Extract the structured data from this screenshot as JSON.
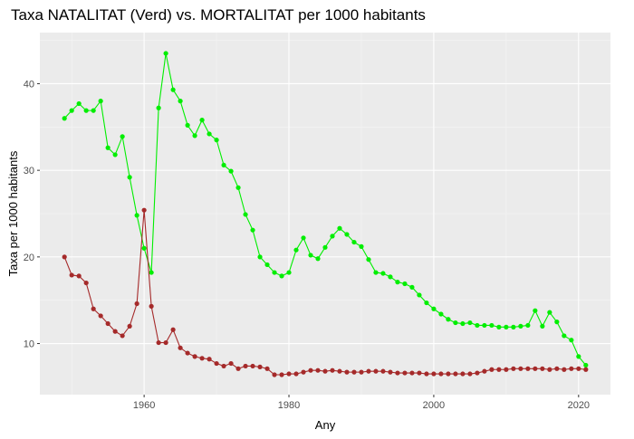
{
  "chart_data": {
    "type": "line",
    "title": "Taxa NATALITAT (Verd) vs. MORTALITAT per 1000 habitants",
    "xlabel": "Any",
    "ylabel": "Taxa per 1000 habitants",
    "xlim": [
      1946.4,
      1923.6
    ],
    "ylim": [
      4.1,
      45.9
    ],
    "x_major_ticks": [
      1960,
      1980,
      2000,
      2020
    ],
    "x_minor_ticks": [
      1950,
      1970,
      1990,
      2010
    ],
    "y_major_ticks": [
      10,
      20,
      30,
      40
    ],
    "y_minor_ticks": [
      15,
      25,
      35,
      45
    ],
    "grid": true,
    "background": "#ebebeb",
    "x": [
      1949,
      1950,
      1951,
      1952,
      1953,
      1954,
      1955,
      1956,
      1957,
      1958,
      1959,
      1960,
      1961,
      1962,
      1963,
      1964,
      1965,
      1966,
      1967,
      1968,
      1969,
      1970,
      1971,
      1972,
      1973,
      1974,
      1975,
      1976,
      1977,
      1978,
      1979,
      1980,
      1981,
      1982,
      1983,
      1984,
      1985,
      1986,
      1987,
      1988,
      1989,
      1990,
      1991,
      1992,
      1993,
      1994,
      1995,
      1996,
      1997,
      1998,
      1999,
      2000,
      2001,
      2002,
      2003,
      2004,
      2005,
      2006,
      2007,
      2008,
      2009,
      2010,
      2011,
      2012,
      2013,
      2014,
      2015,
      2016,
      2017,
      2018,
      2019,
      2020,
      2021
    ],
    "series": [
      {
        "color": "#00ee00",
        "values": [
          36.0,
          36.9,
          37.7,
          36.9,
          36.9,
          38.0,
          32.6,
          31.8,
          33.9,
          29.2,
          24.8,
          21.0,
          18.2,
          37.2,
          43.5,
          39.3,
          38.0,
          35.2,
          34.0,
          35.8,
          34.2,
          33.5,
          30.6,
          29.9,
          28.0,
          24.9,
          23.1,
          20.0,
          19.1,
          18.2,
          17.8,
          18.2,
          20.8,
          22.2,
          20.2,
          19.8,
          21.1,
          22.4,
          23.3,
          22.6,
          21.7,
          21.2,
          19.7,
          18.2,
          18.1,
          17.7,
          17.1,
          16.9,
          16.5,
          15.6,
          14.7,
          14.0,
          13.4,
          12.8,
          12.4,
          12.3,
          12.4,
          12.1,
          12.1,
          12.1,
          11.9,
          11.9,
          11.9,
          12.0,
          12.1,
          13.8,
          12.0,
          13.6,
          12.5,
          10.9,
          10.4,
          8.5,
          7.5
        ]
      },
      {
        "color": "#a52a2a",
        "values": [
          20.0,
          17.9,
          17.8,
          17.0,
          14.0,
          13.2,
          12.3,
          11.4,
          10.9,
          12.0,
          14.6,
          25.4,
          14.3,
          10.1,
          10.1,
          11.6,
          9.5,
          8.9,
          8.5,
          8.3,
          8.2,
          7.7,
          7.4,
          7.7,
          7.1,
          7.4,
          7.4,
          7.3,
          7.1,
          6.4,
          6.4,
          6.5,
          6.5,
          6.7,
          6.9,
          6.9,
          6.8,
          6.9,
          6.8,
          6.7,
          6.7,
          6.7,
          6.8,
          6.8,
          6.8,
          6.7,
          6.6,
          6.6,
          6.6,
          6.6,
          6.5,
          6.5,
          6.5,
          6.5,
          6.5,
          6.5,
          6.5,
          6.6,
          6.8,
          7.0,
          7.0,
          7.0,
          7.1,
          7.1,
          7.1,
          7.1,
          7.1,
          7.0,
          7.1,
          7.0,
          7.1,
          7.1,
          7.0
        ]
      }
    ]
  }
}
